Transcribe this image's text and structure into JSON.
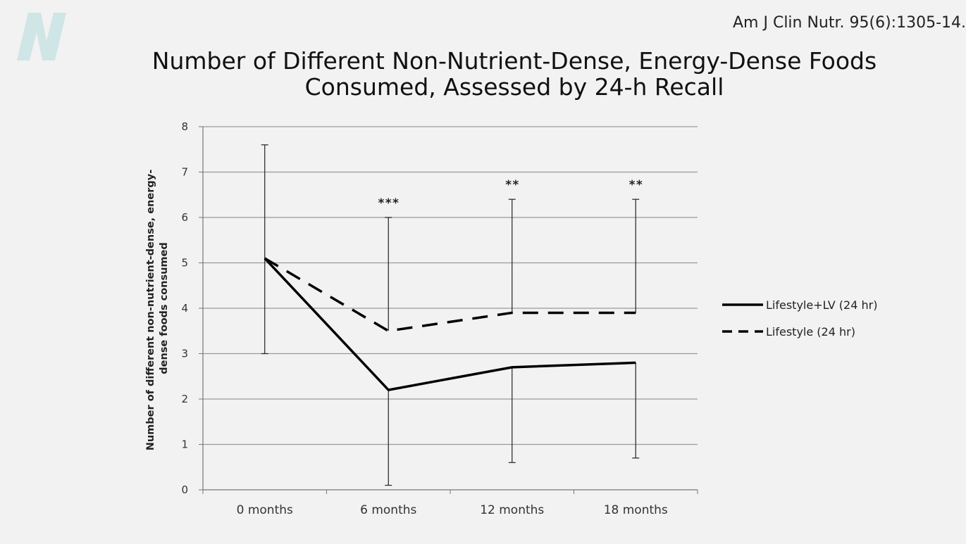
{
  "header": {
    "citation": "Am J Clin Nutr. 95(6):1305-14."
  },
  "chart_data": {
    "type": "line",
    "title": "Number of Different Non-Nutrient-Dense, Energy-Dense Foods Consumed, Assessed by 24-h Recall",
    "title_lines": [
      "Number of Different Non-Nutrient-Dense, Energy-Dense Foods",
      "Consumed, Assessed by 24-h Recall"
    ],
    "ylabel": "Number of different non-nutrient-dense, energy-dense foods consumed",
    "ylabel_lines": [
      "Number of different non-nutrient-dense, energy-",
      "dense foods consumed"
    ],
    "xlabel": "",
    "categories": [
      "0 months",
      "6 months",
      "12 months",
      "18 months"
    ],
    "ylim": [
      0,
      8
    ],
    "yticks": [
      0,
      1,
      2,
      3,
      4,
      5,
      6,
      7,
      8
    ],
    "grid": true,
    "legend_position": "right",
    "series": [
      {
        "name": "Lifestyle+LV (24 hr)",
        "style": "solid",
        "values": [
          5.1,
          2.2,
          2.7,
          2.8
        ],
        "error_low": [
          3.0,
          0.1,
          0.6,
          0.7
        ]
      },
      {
        "name": "Lifestyle (24 hr)",
        "style": "dashed",
        "values": [
          5.1,
          3.5,
          3.9,
          3.9
        ],
        "error_high": [
          7.6,
          6.0,
          6.4,
          6.4
        ]
      }
    ],
    "annotations": [
      "",
      "***",
      "**",
      "**"
    ],
    "colors": {
      "line": "#000000",
      "grid": "#9a9a9a",
      "background": "#f2f2f2"
    }
  }
}
